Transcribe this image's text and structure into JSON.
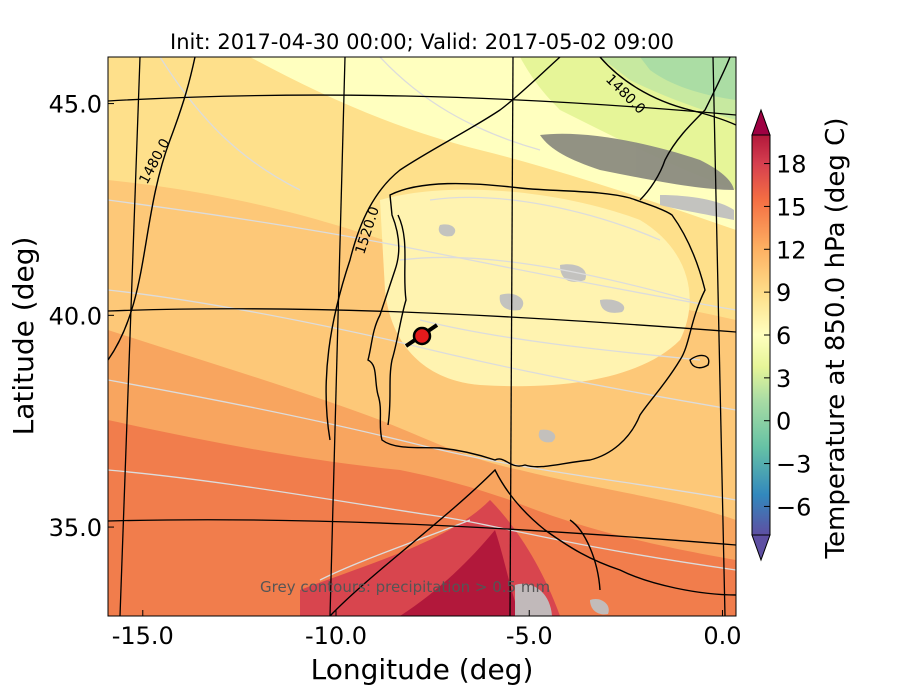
{
  "chart_data": {
    "type": "heatmap",
    "title": "Init: 2017-04-30 00:00; Valid: 2017-05-02 09:00",
    "xlabel": "Longitude (deg)",
    "ylabel": "Latitude (deg)",
    "x_ticks": [
      "-15.0",
      "-10.0",
      "-5.0",
      "0.0"
    ],
    "y_ticks": [
      "35.0",
      "40.0",
      "45.0"
    ],
    "x_tick_values": [
      -15,
      -10,
      -5,
      0
    ],
    "y_tick_values": [
      35,
      40,
      45
    ],
    "xlim": [
      -15.9,
      0.35
    ],
    "ylim": [
      32.9,
      46.1
    ],
    "grid": false,
    "annotation": "Grey contours: precipitation > 0.5 mm",
    "contour_labels": [
      "1480.0",
      "1520.0",
      "1480.0"
    ],
    "marker": {
      "lon": -7.6,
      "lat": 39.4,
      "color": "#e31a1c"
    },
    "colorbar": {
      "label": "Temperature at 850.0 hPa (deg C)",
      "ticks": [
        "18",
        "15",
        "12",
        "9",
        "6",
        "3",
        "0",
        "−3",
        "−6"
      ],
      "tick_values": [
        18,
        15,
        12,
        9,
        6,
        3,
        0,
        -3,
        -6
      ],
      "vmin": -8,
      "vmax": 20,
      "extend": "both",
      "colormap": "Spectral_r"
    },
    "colors": {
      "warm_dark": "#b2183b",
      "warm": "#f46d43",
      "mid": "#fee08b",
      "light": "#ffffbf",
      "cool": "#abdda4",
      "cold": "#3288bd",
      "cold_dark": "#5e4fa2",
      "precip_grey": "#c0c0c0"
    }
  }
}
